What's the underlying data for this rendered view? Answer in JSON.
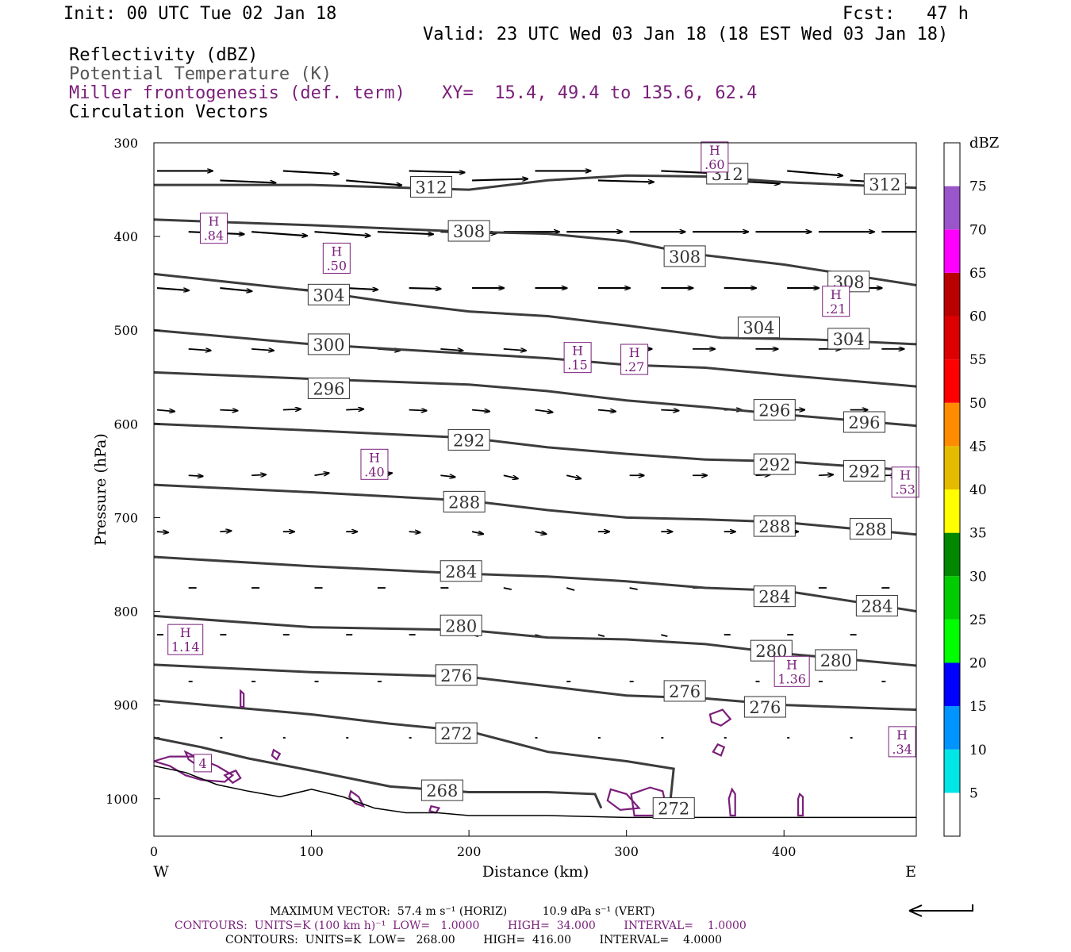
{
  "header": {
    "init": "Init: 00 UTC Tue 02 Jan 18",
    "fcst": "Fcst:   47 h",
    "valid": "Valid: 23 UTC Wed 03 Jan 18 (18 EST Wed 03 Jan 18)",
    "field1": "Reflectivity (dBZ)",
    "field2": "Potential Temperature (K)",
    "field3": "Miller frontogenesis (def. term)",
    "xy": "XY=  15.4, 49.4 to 135.6, 62.4",
    "field4": "Circulation Vectors"
  },
  "colors": {
    "theta": "#3c3c3c",
    "fronto": "#7a1f7a",
    "vector": "#000000"
  },
  "chart_data": {
    "type": "line",
    "xlabel": "Distance (km)",
    "ylabel": "Pressure (hPa)",
    "xlim": [
      0,
      484
    ],
    "ylim": [
      1040,
      300
    ],
    "x_ticks": [
      0,
      100,
      200,
      300,
      400
    ],
    "y_ticks": [
      300,
      400,
      500,
      600,
      700,
      800,
      900,
      1000
    ],
    "x_end_labels": [
      "W",
      "E"
    ],
    "theta_contours": [
      {
        "level": "312",
        "points": [
          [
            0,
            345
          ],
          [
            100,
            345
          ],
          [
            200,
            350
          ],
          [
            250,
            340
          ],
          [
            300,
            335
          ],
          [
            350,
            336
          ],
          [
            400,
            342
          ],
          [
            484,
            348
          ]
        ],
        "labels": [
          [
            176,
            347
          ],
          [
            364,
            333
          ],
          [
            464,
            344
          ]
        ]
      },
      {
        "level": "308",
        "points": [
          [
            0,
            382
          ],
          [
            100,
            388
          ],
          [
            200,
            395
          ],
          [
            250,
            397
          ],
          [
            300,
            405
          ],
          [
            340,
            418
          ],
          [
            400,
            430
          ],
          [
            484,
            452
          ]
        ],
        "labels": [
          [
            200,
            394
          ],
          [
            337,
            421
          ],
          [
            441,
            448
          ]
        ]
      },
      {
        "level": "304",
        "points": [
          [
            0,
            440
          ],
          [
            100,
            458
          ],
          [
            150,
            470
          ],
          [
            200,
            480
          ],
          [
            250,
            485
          ],
          [
            300,
            495
          ],
          [
            360,
            508
          ],
          [
            420,
            510
          ],
          [
            484,
            515
          ]
        ],
        "labels": [
          [
            111,
            462
          ],
          [
            384,
            497
          ],
          [
            441,
            509
          ]
        ]
      },
      {
        "level": "300",
        "points": [
          [
            0,
            500
          ],
          [
            100,
            515
          ],
          [
            200,
            525
          ],
          [
            250,
            530
          ],
          [
            300,
            537
          ],
          [
            350,
            540
          ],
          [
            400,
            548
          ],
          [
            484,
            560
          ]
        ],
        "labels": [
          [
            111,
            515
          ]
        ]
      },
      {
        "level": "296",
        "points": [
          [
            0,
            545
          ],
          [
            100,
            552
          ],
          [
            200,
            558
          ],
          [
            250,
            565
          ],
          [
            300,
            575
          ],
          [
            350,
            582
          ],
          [
            400,
            590
          ],
          [
            484,
            602
          ]
        ],
        "labels": [
          [
            111,
            562
          ],
          [
            394,
            585
          ],
          [
            451,
            598
          ]
        ]
      },
      {
        "level": "292",
        "points": [
          [
            0,
            600
          ],
          [
            100,
            607
          ],
          [
            200,
            615
          ],
          [
            250,
            625
          ],
          [
            300,
            632
          ],
          [
            350,
            638
          ],
          [
            400,
            640
          ],
          [
            484,
            650
          ]
        ],
        "labels": [
          [
            200,
            617
          ],
          [
            394,
            643
          ],
          [
            451,
            650
          ]
        ]
      },
      {
        "level": "288",
        "points": [
          [
            0,
            665
          ],
          [
            100,
            673
          ],
          [
            200,
            682
          ],
          [
            250,
            692
          ],
          [
            300,
            700
          ],
          [
            350,
            702
          ],
          [
            400,
            705
          ],
          [
            484,
            718
          ]
        ],
        "labels": [
          [
            197,
            683
          ],
          [
            394,
            709
          ],
          [
            455,
            712
          ]
        ]
      },
      {
        "level": "284",
        "points": [
          [
            0,
            742
          ],
          [
            100,
            752
          ],
          [
            200,
            760
          ],
          [
            250,
            763
          ],
          [
            300,
            768
          ],
          [
            350,
            775
          ],
          [
            400,
            778
          ],
          [
            484,
            800
          ]
        ],
        "labels": [
          [
            195,
            757
          ],
          [
            394,
            784
          ],
          [
            459,
            794
          ]
        ]
      },
      {
        "level": "280",
        "points": [
          [
            0,
            805
          ],
          [
            100,
            817
          ],
          [
            200,
            820
          ],
          [
            250,
            828
          ],
          [
            300,
            830
          ],
          [
            350,
            835
          ],
          [
            400,
            845
          ],
          [
            484,
            858
          ]
        ],
        "labels": [
          [
            195,
            815
          ],
          [
            392,
            842
          ],
          [
            433,
            852
          ]
        ]
      },
      {
        "level": "276",
        "points": [
          [
            0,
            857
          ],
          [
            100,
            865
          ],
          [
            200,
            870
          ],
          [
            250,
            880
          ],
          [
            300,
            890
          ],
          [
            350,
            893
          ],
          [
            400,
            900
          ],
          [
            484,
            905
          ]
        ],
        "labels": [
          [
            192,
            868
          ],
          [
            337,
            885
          ],
          [
            388,
            902
          ]
        ]
      },
      {
        "level": "272",
        "points": [
          [
            0,
            895
          ],
          [
            100,
            910
          ],
          [
            150,
            920
          ],
          [
            200,
            928
          ],
          [
            250,
            950
          ],
          [
            300,
            960
          ],
          [
            330,
            968
          ],
          [
            328,
            1000
          ],
          [
            325,
            1000
          ]
        ],
        "labels": [
          [
            192,
            930
          ],
          [
            330,
            1010
          ]
        ]
      },
      {
        "level": "268",
        "points": [
          [
            0,
            935
          ],
          [
            30,
            945
          ],
          [
            60,
            957
          ],
          [
            100,
            970
          ],
          [
            150,
            987
          ],
          [
            200,
            993
          ],
          [
            250,
            993
          ],
          [
            280,
            995
          ],
          [
            284,
            1010
          ]
        ],
        "labels": [
          [
            183,
            991
          ]
        ]
      }
    ],
    "fronto_maxima": [
      {
        "label": "H",
        "value": ".84"
      },
      {
        "label": "H",
        "value": ".50"
      },
      {
        "label": "H",
        "value": ".60"
      },
      {
        "label": "H",
        "value": ".21"
      },
      {
        "label": "H",
        "value": ".15"
      },
      {
        "label": "H",
        "value": ".27"
      },
      {
        "label": "H",
        "value": ".40"
      },
      {
        "label": "H",
        "value": ".53"
      },
      {
        "label": "H",
        "value": "1.14"
      },
      {
        "label": "H",
        "value": "1.36"
      },
      {
        "label": "H",
        "value": ".34"
      },
      {
        "label": "",
        "value": "4"
      }
    ],
    "colorbar": {
      "title": "dBZ",
      "levels": [
        "5",
        "10",
        "15",
        "20",
        "25",
        "30",
        "35",
        "40",
        "45",
        "50",
        "55",
        "60",
        "65",
        "70",
        "75"
      ],
      "colors": [
        "#00e5e5",
        "#0094ff",
        "#0000ff",
        "#00ff00",
        "#00cc00",
        "#008800",
        "#ffff00",
        "#e5bb00",
        "#ff8c00",
        "#ff0000",
        "#dd0000",
        "#bb0000",
        "#ff00ff",
        "#9955c9",
        "#ffffff"
      ]
    }
  },
  "footer": {
    "max_vector": "MAXIMUM VECTOR:  57.4 m s⁻¹ (HORIZ)          10.9 dPa s⁻¹ (VERT)",
    "contours1": "CONTOURS:  UNITS=K (100 km h)⁻¹  LOW=   1.0000        HIGH=  34.000        INTERVAL=    1.0000",
    "contours2": "CONTOURS:  UNITS=K  LOW=   268.00        HIGH=  416.00        INTERVAL=    4.0000"
  }
}
